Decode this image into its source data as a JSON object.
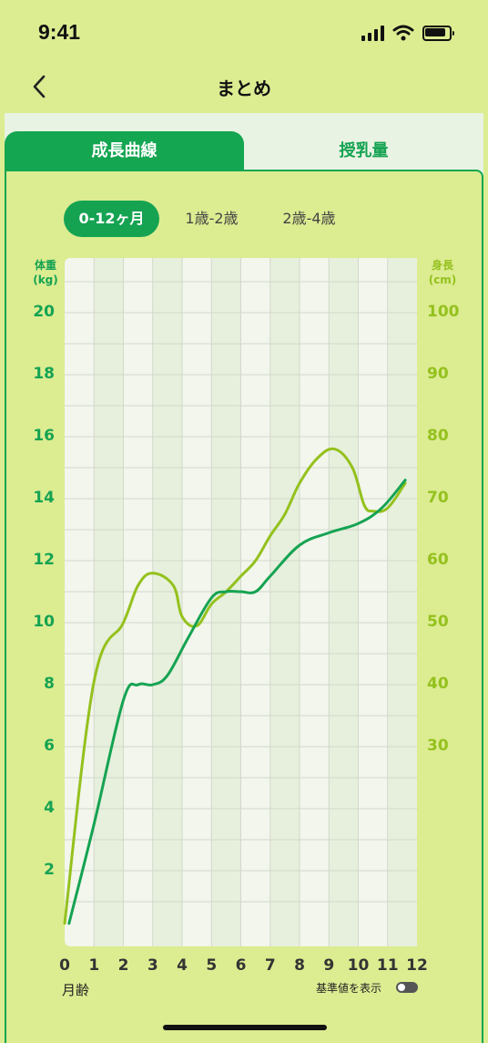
{
  "status_bar": {
    "time": "9:41"
  },
  "header": {
    "title": "まとめ"
  },
  "tabs": [
    {
      "label": "成長曲線",
      "active": true
    },
    {
      "label": "授乳量",
      "active": false
    }
  ],
  "range_options": [
    {
      "label": "0-12ヶ月",
      "active": true
    },
    {
      "label": "1歳-2歳",
      "active": false
    },
    {
      "label": "2歳-4歳",
      "active": false
    }
  ],
  "footer": {
    "toggle_label": "基準値を表示",
    "toggle_on": false
  },
  "colors": {
    "weight": "#15a352",
    "height": "#94c11d",
    "accent": "#14a651"
  },
  "chart_data": {
    "type": "line",
    "xlabel": "月齢",
    "x_ticks": [
      "0",
      "1",
      "2",
      "3",
      "4",
      "5",
      "6",
      "7",
      "8",
      "9",
      "10",
      "11",
      "12"
    ],
    "xlim": [
      0,
      12
    ],
    "y_left": {
      "label_line1": "体重",
      "label_line2": "(kg)",
      "ticks": [
        "2",
        "4",
        "6",
        "8",
        "10",
        "12",
        "14",
        "16",
        "18",
        "20"
      ],
      "ylim": [
        0,
        21
      ]
    },
    "y_right": {
      "label_line1": "身長",
      "label_line2": "(cm)",
      "ticks": [
        "30",
        "40",
        "50",
        "60",
        "70",
        "80",
        "90",
        "100"
      ]
    },
    "grid": true,
    "series": [
      {
        "axis": "left",
        "x": [
          0.15,
          1.0,
          2.0,
          2.5,
          3.0,
          3.5,
          4.2,
          5.0,
          5.5,
          6.0,
          6.5,
          7.0,
          8.0,
          9.0,
          10.0,
          10.8,
          11.6
        ],
        "y": [
          0.3,
          3.5,
          7.5,
          8.0,
          8.0,
          8.3,
          9.5,
          10.8,
          11.0,
          11.0,
          11.0,
          11.5,
          12.5,
          12.9,
          13.2,
          13.7,
          14.6
        ]
      },
      {
        "axis": "left",
        "x": [
          0.0,
          1.0,
          2.0,
          2.5,
          3.0,
          3.7,
          4.0,
          4.5,
          5.0,
          5.5,
          6.0,
          6.5,
          7.0,
          7.5,
          8.0,
          8.6,
          9.2,
          9.8,
          10.2,
          10.5,
          11.0,
          11.6
        ],
        "y": [
          0.3,
          8.1,
          10.0,
          11.2,
          11.6,
          11.2,
          10.2,
          9.9,
          10.6,
          11.0,
          11.5,
          12.0,
          12.8,
          13.5,
          14.5,
          15.3,
          15.6,
          15.0,
          13.8,
          13.6,
          13.7,
          14.5
        ]
      }
    ]
  }
}
